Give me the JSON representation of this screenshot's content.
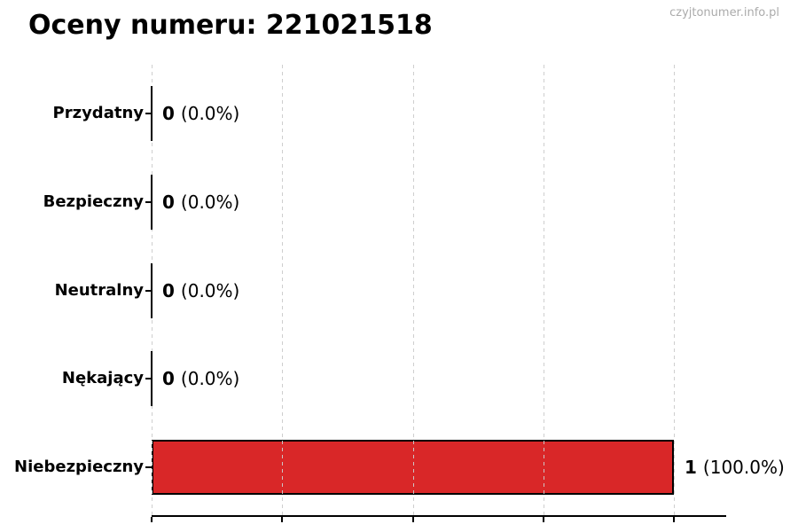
{
  "header": {
    "title": "Oceny numeru: 221021518",
    "watermark": "czyjtonumer.info.pl"
  },
  "colors": {
    "bar_fill": "#d92728",
    "bar_edge": "#000000",
    "gridline": "#cccccc",
    "axis": "#000000",
    "watermark_text": "#ababab",
    "text": "#000000"
  },
  "chart_data": {
    "type": "bar",
    "orientation": "horizontal",
    "title": "Oceny numeru: 221021518",
    "categories": [
      "Przydatny",
      "Bezpieczny",
      "Neutralny",
      "Nękający",
      "Niebezpieczny"
    ],
    "values": [
      0,
      0,
      0,
      0,
      1
    ],
    "percentages": [
      0.0,
      0.0,
      0.0,
      0.0,
      100.0
    ],
    "value_labels": [
      {
        "num": "0",
        "pct": "(0.0%)"
      },
      {
        "num": "0",
        "pct": "(0.0%)"
      },
      {
        "num": "0",
        "pct": "(0.0%)"
      },
      {
        "num": "0",
        "pct": "(0.0%)"
      },
      {
        "num": "1",
        "pct": "(100.0%)"
      }
    ],
    "xlabel": "",
    "ylabel": "",
    "xlim": [
      0,
      1.1
    ],
    "xticks": [
      0,
      0.25,
      0.5,
      0.75,
      1.0
    ],
    "grid": true,
    "grid_style": "dashed",
    "bar_color": "#d92728",
    "legend": null
  }
}
